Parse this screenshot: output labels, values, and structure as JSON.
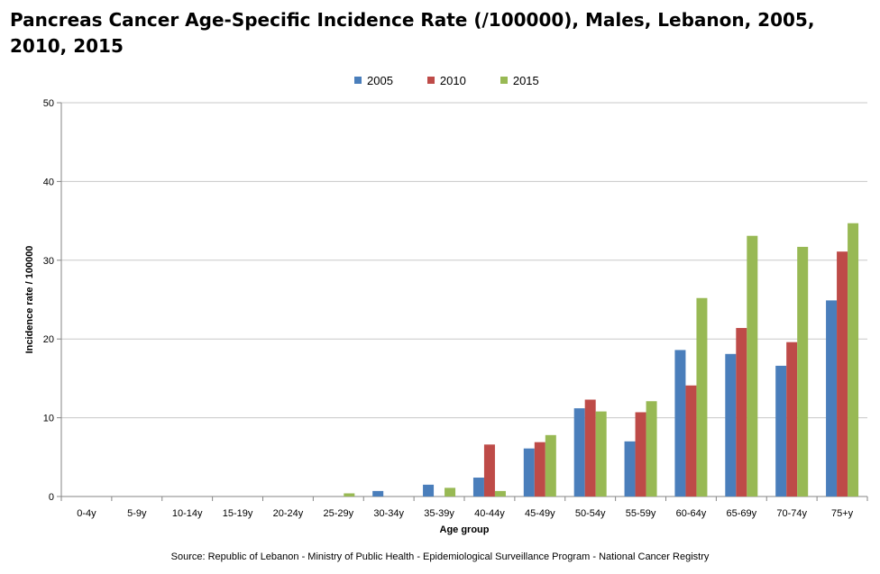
{
  "chart_data": {
    "type": "bar",
    "title": "Pancreas Cancer Age-Specific Incidence Rate (/100000), Males, Lebanon, 2005, 2010, 2015",
    "xlabel": "Age group",
    "ylabel": "Incidence rate / 100000",
    "ylim": [
      0,
      50
    ],
    "yticks": [
      0,
      10,
      20,
      30,
      40,
      50
    ],
    "grid": true,
    "legend_position": "top-center",
    "categories": [
      "0-4y",
      "5-9y",
      "10-14y",
      "15-19y",
      "20-24y",
      "25-29y",
      "30-34y",
      "35-39y",
      "40-44y",
      "45-49y",
      "50-54y",
      "55-59y",
      "60-64y",
      "65-69y",
      "70-74y",
      "75+y"
    ],
    "series": [
      {
        "name": "2005",
        "color": "#4a7ebb",
        "values": [
          0,
          0,
          0,
          0,
          0,
          0,
          0.7,
          1.5,
          2.4,
          6.1,
          11.2,
          7.0,
          18.6,
          18.1,
          16.6,
          24.9
        ]
      },
      {
        "name": "2010",
        "color": "#be4b48",
        "values": [
          0,
          0,
          0,
          0,
          0,
          0,
          0,
          0,
          6.6,
          6.9,
          12.3,
          10.7,
          14.1,
          21.4,
          19.6,
          31.1
        ]
      },
      {
        "name": "2015",
        "color": "#98b954",
        "values": [
          0,
          0,
          0,
          0,
          0,
          0.4,
          0,
          1.1,
          0.7,
          7.8,
          10.8,
          12.1,
          25.2,
          33.1,
          31.7,
          34.7
        ]
      }
    ]
  },
  "source": "Source: Republic of Lebanon - Ministry of Public Health - Epidemiological Surveillance Program - National Cancer Registry"
}
